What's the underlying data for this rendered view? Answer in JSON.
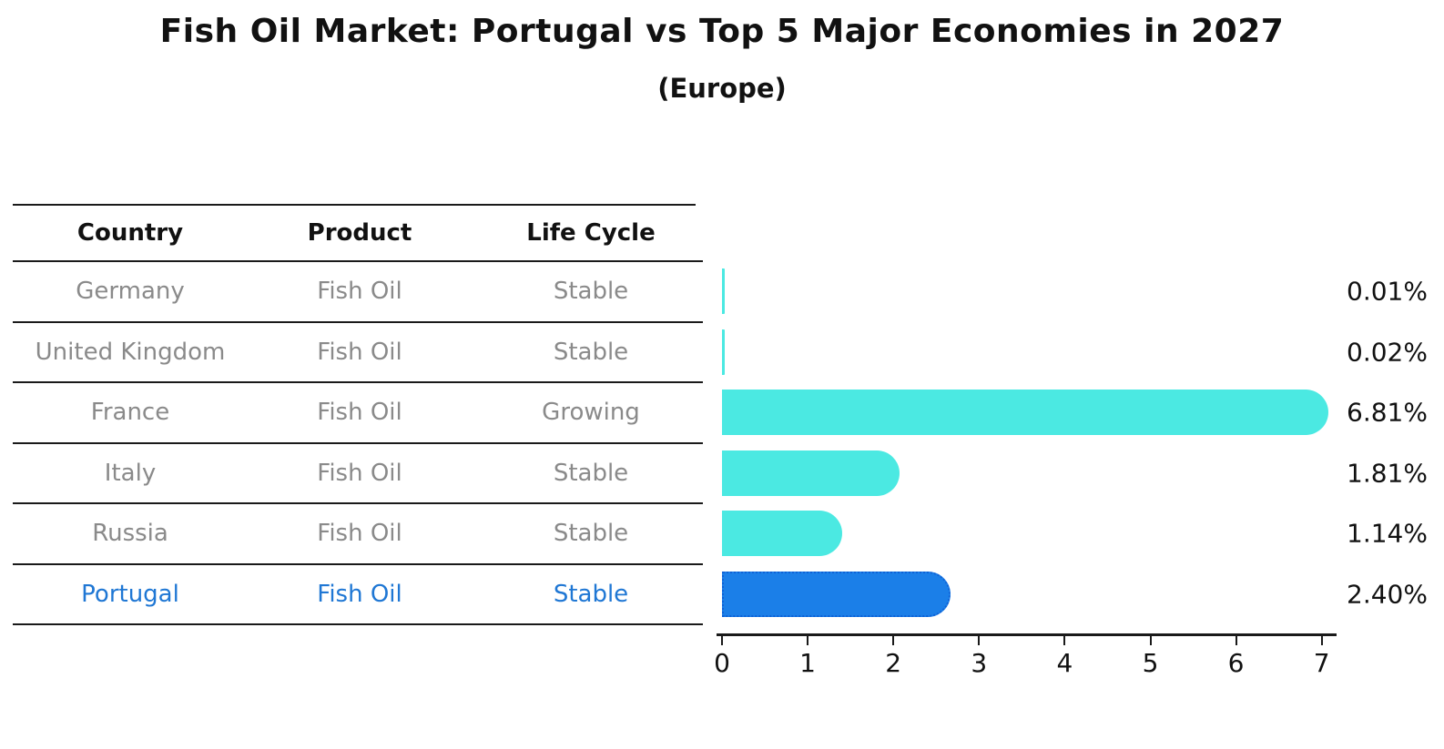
{
  "title": "Fish Oil Market: Portugal vs Top 5 Major Economies in 2027",
  "subtitle": "(Europe)",
  "table": {
    "headers": [
      "Country",
      "Product",
      "Life Cycle"
    ],
    "rows": [
      {
        "country": "Germany",
        "product": "Fish Oil",
        "life_cycle": "Stable",
        "highlighted": false
      },
      {
        "country": "United Kingdom",
        "product": "Fish Oil",
        "life_cycle": "Stable",
        "highlighted": false
      },
      {
        "country": "France",
        "product": "Fish Oil",
        "life_cycle": "Growing",
        "highlighted": false
      },
      {
        "country": "Italy",
        "product": "Fish Oil",
        "life_cycle": "Stable",
        "highlighted": false
      },
      {
        "country": "Russia",
        "product": "Fish Oil",
        "life_cycle": "Stable",
        "highlighted": false
      },
      {
        "country": "Portugal",
        "product": "Fish Oil",
        "life_cycle": "Stable",
        "highlighted": true
      }
    ]
  },
  "chart_data": {
    "type": "bar",
    "orientation": "horizontal",
    "title": "Fish Oil Market: Portugal vs Top 5 Major Economies in 2027",
    "subtitle": "(Europe)",
    "categories": [
      "Germany",
      "United Kingdom",
      "France",
      "Italy",
      "Russia",
      "Portugal"
    ],
    "values": [
      0.01,
      0.02,
      6.81,
      1.81,
      1.14,
      2.4
    ],
    "bar_labels": [
      "0.01%",
      "0.02%",
      "6.81%",
      "1.81%",
      "1.14%",
      "2.40%"
    ],
    "x_ticks": [
      0,
      1,
      2,
      3,
      4,
      5,
      6,
      7
    ],
    "xlim": [
      0,
      7.2
    ],
    "grid": false,
    "legend": null,
    "highlight_index": 5,
    "colors": {
      "bar_default": "#4BE9E2",
      "bar_highlight": "#1B7FE8",
      "bar_highlight_border": "#0f62d6",
      "highlight_text": "#1f77d4",
      "muted_text": "#8a8a8a",
      "label_text": "#111111",
      "axis": "#1a1a1a"
    }
  }
}
